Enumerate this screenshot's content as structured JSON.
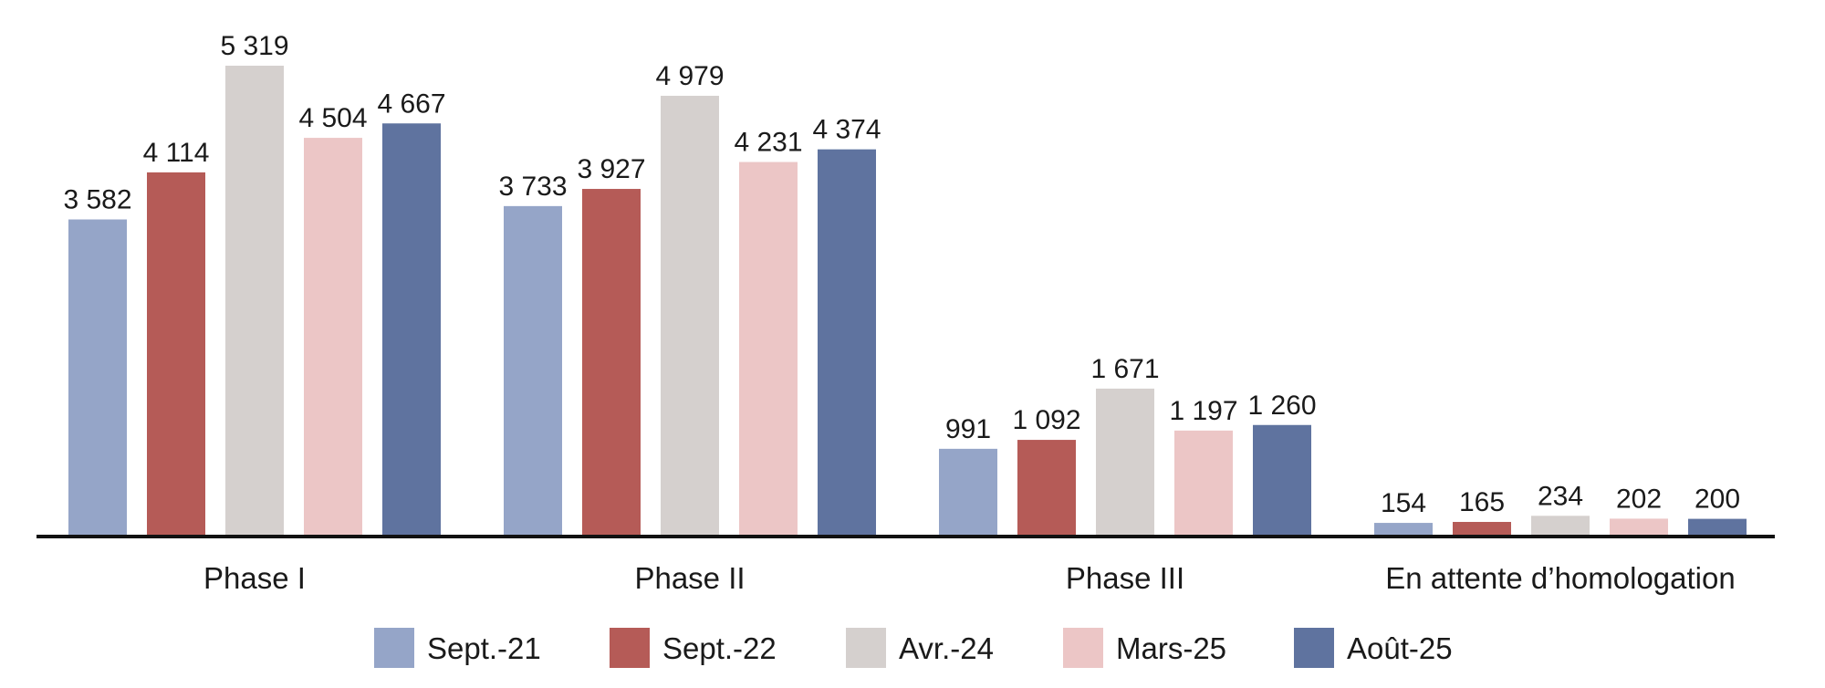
{
  "chart_data": {
    "type": "bar",
    "categories": [
      "Phase I",
      "Phase II",
      "Phase III",
      "En attente d’homologation"
    ],
    "series": [
      {
        "name": "Sept.-21",
        "color": "#95a5c8",
        "values": [
          3582,
          3733,
          991,
          154
        ],
        "labels": [
          "3 582",
          "3 733",
          "991",
          "154"
        ]
      },
      {
        "name": "Sept.-22",
        "color": "#b55b57",
        "values": [
          4114,
          3927,
          1092,
          165
        ],
        "labels": [
          "4 114",
          "3 927",
          "1 092",
          "165"
        ]
      },
      {
        "name": "Avr.-24",
        "color": "#d5d0ce",
        "values": [
          5319,
          4979,
          1671,
          234
        ],
        "labels": [
          "5 319",
          "4 979",
          "1 671",
          "234"
        ]
      },
      {
        "name": "Mars-25",
        "color": "#ecc6c6",
        "values": [
          4504,
          4231,
          1197,
          202
        ],
        "labels": [
          "4 504",
          "4 231",
          "1 197",
          "202"
        ]
      },
      {
        "name": "Août-25",
        "color": "#5f739f",
        "values": [
          4667,
          4374,
          1260,
          200
        ],
        "labels": [
          "4 667",
          "4 374",
          "1 260",
          "200"
        ]
      }
    ],
    "ylim": [
      0,
      5500
    ],
    "grid": false,
    "legend_position": "bottom"
  }
}
